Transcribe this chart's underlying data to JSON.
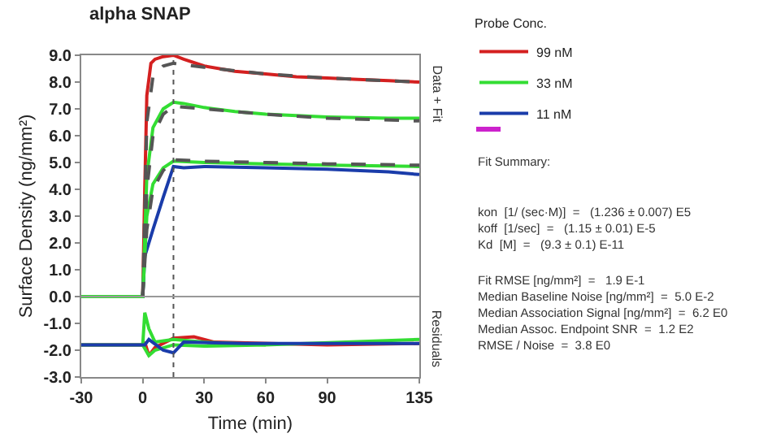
{
  "chart_data": {
    "type": "line",
    "title": "alpha SNAP",
    "xlabel": "Time (min)",
    "ylabel": "Surface Density (ng/mm²)",
    "legend_title": "Probe Conc.",
    "xlim": [
      -30,
      135
    ],
    "xticks": [
      -30,
      0,
      30,
      60,
      90,
      135
    ],
    "ylim": [
      -3,
      9
    ],
    "yticks": [
      {
        "value": -3,
        "label": "-3.0"
      },
      {
        "value": -2,
        "label": "-2.0"
      },
      {
        "value": -1,
        "label": "-1.0"
      },
      {
        "value": 0,
        "label": "0.0"
      },
      {
        "value": 1,
        "label": "1.0"
      },
      {
        "value": 2,
        "label": "2.0"
      },
      {
        "value": 3,
        "label": "3.0"
      },
      {
        "value": 4,
        "label": "4.0"
      },
      {
        "value": 5,
        "label": "5.0"
      },
      {
        "value": 6,
        "label": "6.0"
      },
      {
        "value": 7,
        "label": "7.0"
      },
      {
        "value": 8,
        "label": "8.0"
      },
      {
        "value": 9,
        "label": "9.0"
      }
    ],
    "grid": false,
    "legend": "right",
    "marker": "none",
    "line_style": "solid",
    "series": [
      {
        "name": "99 nM",
        "color": "#d42020",
        "x": [
          -30,
          -15,
          0,
          1,
          2,
          4,
          6,
          10,
          15,
          20,
          30,
          45,
          60,
          75,
          90,
          105,
          120,
          135
        ],
        "values": [
          0,
          0,
          0,
          4,
          7.5,
          8.7,
          8.85,
          8.95,
          9.0,
          8.85,
          8.6,
          8.4,
          8.3,
          8.2,
          8.15,
          8.1,
          8.05,
          8.0
        ]
      },
      {
        "name": "33 nM",
        "color": "#33dd33",
        "x": [
          -30,
          0,
          2,
          5,
          10,
          15,
          20,
          30,
          45,
          60,
          90,
          120,
          135
        ],
        "values": [
          0,
          0,
          4.5,
          6.3,
          7.0,
          7.25,
          7.2,
          7.05,
          6.9,
          6.8,
          6.7,
          6.65,
          6.65
        ]
      },
      {
        "name": "11 nM",
        "color": "#1a3caa",
        "x": [
          -30,
          0,
          1,
          5,
          10,
          15,
          20,
          30,
          60,
          90,
          120,
          135
        ],
        "values": [
          0,
          0,
          1.5,
          2.5,
          3.7,
          4.85,
          4.8,
          4.85,
          4.8,
          4.75,
          4.65,
          4.55
        ]
      },
      {
        "color": "#33dd33",
        "x": [
          -30,
          0,
          2,
          5,
          10,
          15,
          30,
          60,
          90,
          135
        ],
        "values": [
          0,
          0,
          3.0,
          4.2,
          4.8,
          5.05,
          5.0,
          4.95,
          4.9,
          4.85
        ]
      },
      {
        "color": "#555555",
        "line_style": "dashed",
        "x": [
          0,
          2,
          5,
          10,
          15,
          30,
          60,
          90,
          135
        ],
        "values": [
          0,
          6.5,
          8.2,
          8.6,
          8.7,
          8.55,
          8.3,
          8.15,
          8.0
        ]
      },
      {
        "color": "#555555",
        "line_style": "dashed",
        "x": [
          0,
          2,
          5,
          10,
          15,
          30,
          60,
          90,
          135
        ],
        "values": [
          0,
          4.0,
          6.0,
          6.8,
          7.1,
          7.0,
          6.8,
          6.65,
          6.55
        ]
      },
      {
        "color": "#555555",
        "line_style": "dashed",
        "x": [
          0,
          2,
          5,
          10,
          15,
          30,
          60,
          90,
          135
        ],
        "values": [
          0,
          2.5,
          4.0,
          4.7,
          5.1,
          5.05,
          5.0,
          4.95,
          4.9
        ]
      },
      {
        "color": "#d42020",
        "x": [
          -30,
          0,
          1,
          3,
          6,
          15,
          25,
          35,
          90,
          135
        ],
        "values": [
          -1.8,
          -1.8,
          -1.7,
          -2.2,
          -1.9,
          -1.55,
          -1.5,
          -1.7,
          -1.8,
          -1.75
        ]
      },
      {
        "color": "#33dd33",
        "x": [
          -30,
          0,
          1,
          3,
          6,
          15,
          30,
          60,
          135
        ],
        "values": [
          -1.8,
          -1.8,
          -0.6,
          -1.2,
          -1.7,
          -1.6,
          -1.7,
          -1.8,
          -1.6
        ]
      },
      {
        "color": "#33dd33",
        "x": [
          0,
          3,
          6,
          15,
          30,
          60
        ],
        "values": [
          -1.8,
          -2.2,
          -2.0,
          -1.8,
          -1.85,
          -1.8
        ]
      },
      {
        "color": "#1a3caa",
        "x": [
          -30,
          0,
          1,
          3,
          10,
          15,
          20,
          50,
          135
        ],
        "values": [
          -1.8,
          -1.8,
          -1.8,
          -1.6,
          -2.0,
          -2.1,
          -1.7,
          -1.75,
          -1.75
        ]
      }
    ],
    "ref_lines": [
      {
        "axis": "x",
        "value": 15,
        "color": "#555555",
        "line_style": "dotted"
      },
      {
        "axis": "y",
        "value": 0,
        "color": "#999999",
        "line_style": "solid"
      }
    ],
    "annotations": [
      "Data + Fit",
      "Residuals",
      "Fit Summary:",
      "kon  [1/ (sec·M)]  =   (1.236 ± 0.007) E5",
      "koff  [1/sec]  =   (1.15 ± 0.01) E-5",
      "Kd  [M]  =   (9.3 ± 0.1) E-11",
      "Fit RMSE [ng/mm²]  =   1.9 E-1",
      "Median Baseline Noise [ng/mm²]  =  5.0 E-2",
      "Median Association Signal [ng/mm²]  =  6.2 E0",
      "Median Assoc. Endpoint SNR  =  1.2 E2",
      "RMSE / Noise  =  3.8 E0"
    ]
  }
}
